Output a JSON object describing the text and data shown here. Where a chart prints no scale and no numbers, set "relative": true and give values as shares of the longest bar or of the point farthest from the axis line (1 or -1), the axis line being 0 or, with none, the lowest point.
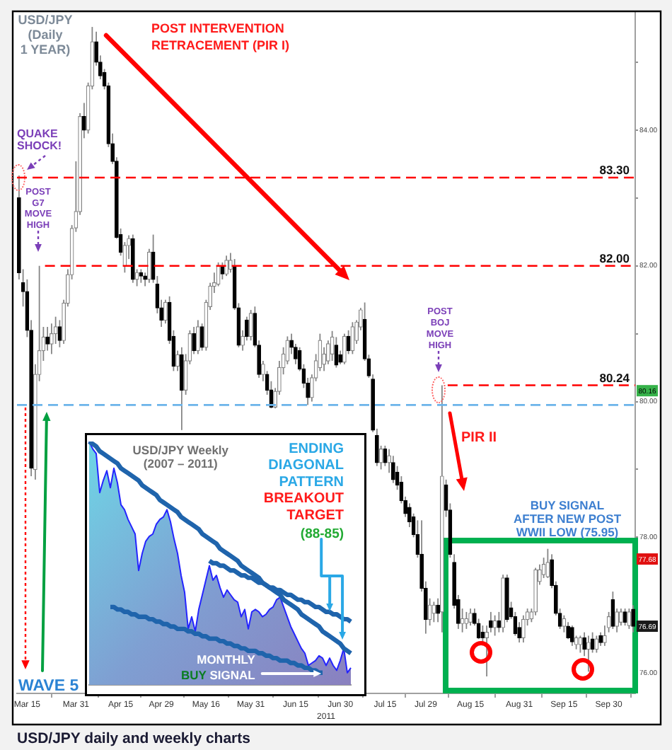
{
  "chart_data": [
    {
      "type": "candlestick",
      "title": "USD/JPY\n(Daily\n1 YEAR)",
      "xlabel": "2011",
      "categories": [
        null,
        null,
        "Mar 15",
        null,
        null,
        null,
        null,
        null,
        null,
        null,
        null,
        null,
        null,
        null,
        "Mar 31",
        null,
        null,
        null,
        null,
        null,
        null,
        null,
        null,
        null,
        null,
        "Apr 15",
        null,
        null,
        null,
        null,
        null,
        null,
        null,
        null,
        null,
        "Apr 29",
        null,
        null,
        null,
        null,
        null,
        null,
        null,
        null,
        null,
        null,
        "May 16",
        null,
        null,
        null,
        null,
        null,
        null,
        null,
        null,
        null,
        null,
        "May 31",
        null,
        null,
        null,
        null,
        null,
        null,
        null,
        null,
        null,
        null,
        "Jun 15",
        null,
        null,
        null,
        null,
        null,
        null,
        null,
        null,
        null,
        null,
        "Jun 30",
        null,
        null,
        null,
        null,
        null,
        null,
        null,
        null,
        null,
        null,
        "Jul 15",
        null,
        null,
        null,
        null,
        null,
        null,
        null,
        null,
        null,
        "Jul 29",
        null,
        null,
        null,
        null,
        null,
        null,
        null,
        null,
        null,
        null,
        "Aug 15",
        null,
        null,
        null,
        null,
        null,
        null,
        null,
        null,
        null,
        null,
        null,
        "Aug 31",
        null,
        null,
        null,
        null,
        null,
        null,
        null,
        null,
        null,
        null,
        "Sep 15",
        null,
        null,
        null,
        null,
        null,
        null,
        null,
        null,
        null,
        null,
        "Sep 30",
        null,
        null,
        null,
        null,
        null,
        null
      ],
      "ohlc": [
        [
          83.0,
          83.33,
          81.8,
          81.9
        ],
        [
          81.75,
          81.95,
          81.4,
          81.62
        ],
        [
          81.62,
          81.8,
          80.95,
          81.05
        ],
        [
          81.05,
          81.2,
          78.9,
          79.02
        ],
        [
          79.0,
          80.55,
          78.85,
          80.4
        ],
        [
          80.4,
          82.0,
          80.3,
          80.75
        ],
        [
          80.75,
          81.1,
          80.6,
          80.95
        ],
        [
          80.95,
          81.1,
          80.75,
          80.85
        ],
        [
          80.85,
          81.15,
          80.7,
          81.0
        ],
        [
          81.0,
          81.25,
          80.85,
          81.1
        ],
        [
          81.1,
          81.2,
          80.8,
          80.9
        ],
        [
          80.9,
          81.5,
          80.85,
          81.45
        ],
        [
          81.45,
          81.95,
          81.4,
          81.87
        ],
        [
          81.87,
          82.6,
          81.8,
          82.55
        ],
        [
          82.56,
          83.54,
          82.5,
          82.8
        ],
        [
          82.8,
          84.25,
          82.75,
          84.2
        ],
        [
          84.2,
          84.4,
          83.88,
          84.0
        ],
        [
          84.0,
          84.7,
          83.95,
          84.65
        ],
        [
          84.65,
          85.52,
          84.6,
          85.3
        ],
        [
          85.3,
          85.45,
          84.95,
          85.0
        ],
        [
          85.0,
          85.1,
          84.75,
          84.8
        ],
        [
          84.85,
          84.9,
          84.6,
          84.65
        ],
        [
          84.65,
          84.7,
          83.75,
          83.8
        ],
        [
          83.8,
          83.95,
          83.5,
          83.54
        ],
        [
          83.54,
          83.6,
          82.4,
          82.42
        ],
        [
          82.46,
          82.55,
          82.15,
          82.2
        ],
        [
          82.0,
          82.35,
          81.9,
          82.3
        ],
        [
          82.3,
          82.45,
          82.1,
          82.4
        ],
        [
          82.4,
          82.46,
          81.75,
          81.8
        ],
        [
          81.8,
          81.95,
          81.7,
          81.9
        ],
        [
          81.9,
          81.95,
          81.75,
          81.85
        ],
        [
          81.85,
          81.9,
          81.7,
          81.8
        ],
        [
          81.8,
          82.25,
          81.75,
          82.2
        ],
        [
          82.2,
          82.46,
          81.75,
          81.8
        ],
        [
          81.73,
          81.85,
          81.3,
          81.38
        ],
        [
          81.38,
          81.5,
          81.1,
          81.2
        ],
        [
          81.2,
          81.5,
          81.15,
          81.46
        ],
        [
          81.46,
          81.55,
          80.85,
          80.9
        ],
        [
          80.96,
          81.05,
          80.45,
          80.52
        ],
        [
          80.52,
          80.75,
          80.45,
          80.69
        ],
        [
          80.69,
          80.8,
          79.58,
          80.17
        ],
        [
          80.17,
          80.7,
          80.1,
          80.6
        ],
        [
          80.6,
          81.05,
          80.55,
          81.0
        ],
        [
          81.0,
          81.1,
          80.7,
          80.75
        ],
        [
          80.75,
          81.2,
          80.7,
          81.1
        ],
        [
          81.1,
          81.15,
          80.75,
          80.8
        ],
        [
          80.8,
          81.5,
          80.75,
          81.46
        ],
        [
          81.4,
          81.75,
          81.35,
          81.7
        ],
        [
          81.7,
          81.9,
          81.6,
          81.75
        ],
        [
          81.73,
          82.05,
          81.7,
          82.0
        ],
        [
          82.0,
          82.05,
          81.8,
          81.88
        ],
        [
          81.88,
          82.15,
          81.85,
          82.08
        ],
        [
          81.95,
          82.19,
          81.9,
          82.08
        ],
        [
          82.0,
          82.1,
          81.35,
          81.38
        ],
        [
          81.38,
          81.45,
          80.8,
          80.83
        ],
        [
          80.83,
          81.05,
          80.75,
          80.96
        ],
        [
          81.2,
          81.25,
          80.9,
          80.96
        ],
        [
          80.96,
          81.35,
          80.9,
          81.3
        ],
        [
          81.3,
          81.4,
          80.8,
          80.83
        ],
        [
          80.83,
          80.9,
          80.35,
          80.4
        ],
        [
          80.4,
          80.6,
          80.3,
          80.55
        ],
        [
          80.4,
          80.45,
          80.1,
          80.17
        ],
        [
          80.17,
          80.3,
          79.9,
          79.92
        ],
        [
          79.92,
          80.2,
          79.9,
          80.15
        ],
        [
          80.15,
          80.6,
          80.1,
          80.5
        ],
        [
          80.5,
          80.8,
          80.4,
          80.7
        ],
        [
          80.6,
          80.96,
          80.55,
          80.9
        ],
        [
          80.9,
          81.0,
          80.7,
          80.8
        ],
        [
          80.8,
          80.85,
          80.55,
          80.63
        ],
        [
          80.75,
          80.8,
          80.45,
          80.48
        ],
        [
          80.48,
          80.55,
          80.2,
          80.27
        ],
        [
          80.27,
          80.35,
          79.95,
          80.06
        ],
        [
          80.06,
          80.4,
          80.0,
          80.35
        ],
        [
          80.35,
          80.7,
          80.3,
          80.6
        ],
        [
          80.5,
          81.0,
          80.45,
          80.9
        ],
        [
          80.55,
          80.8,
          80.45,
          80.7
        ],
        [
          80.6,
          80.9,
          80.55,
          80.85
        ],
        [
          80.7,
          81.04,
          80.6,
          80.95
        ],
        [
          80.83,
          80.95,
          80.5,
          80.54
        ],
        [
          80.69,
          80.75,
          80.55,
          80.58
        ],
        [
          80.58,
          81.0,
          80.55,
          80.96
        ],
        [
          80.96,
          81.05,
          80.7,
          80.75
        ],
        [
          80.75,
          81.17,
          80.7,
          81.1
        ],
        [
          80.9,
          81.2,
          80.85,
          81.17
        ],
        [
          81.1,
          81.38,
          81.05,
          81.35
        ],
        [
          81.21,
          81.46,
          80.6,
          80.63
        ],
        [
          80.63,
          80.69,
          80.35,
          80.38
        ],
        [
          80.33,
          80.4,
          79.55,
          79.58
        ],
        [
          79.5,
          79.6,
          79.05,
          79.1
        ],
        [
          79.1,
          79.35,
          79.0,
          79.3
        ],
        [
          79.3,
          79.35,
          79.05,
          79.1
        ],
        [
          79.1,
          79.3,
          78.95,
          79.2
        ],
        [
          79.1,
          79.2,
          78.8,
          78.85
        ],
        [
          78.96,
          79.05,
          78.7,
          78.77
        ],
        [
          78.81,
          78.9,
          78.5,
          78.54
        ],
        [
          78.54,
          78.6,
          78.3,
          78.35
        ],
        [
          78.44,
          78.5,
          78.15,
          78.23
        ],
        [
          78.3,
          78.35,
          78.0,
          78.04
        ],
        [
          78.04,
          78.25,
          77.7,
          77.75
        ],
        [
          77.75,
          78.25,
          77.2,
          77.25
        ],
        [
          77.25,
          77.35,
          76.58,
          76.79
        ],
        [
          76.79,
          77.1,
          76.7,
          77.0
        ],
        [
          76.88,
          77.05,
          76.75,
          77.0
        ],
        [
          77.0,
          77.1,
          76.75,
          76.88
        ],
        [
          76.9,
          80.24,
          76.6,
          78.9
        ],
        [
          78.77,
          78.85,
          78.3,
          78.4
        ],
        [
          78.4,
          78.5,
          77.7,
          77.75
        ],
        [
          77.63,
          77.75,
          76.95,
          77.0
        ],
        [
          77.08,
          77.15,
          76.65,
          76.73
        ],
        [
          76.73,
          76.95,
          76.6,
          76.8
        ],
        [
          76.73,
          76.9,
          76.65,
          76.8
        ],
        [
          76.75,
          76.95,
          76.7,
          76.88
        ],
        [
          76.88,
          76.95,
          76.7,
          76.73
        ],
        [
          76.73,
          76.8,
          76.5,
          76.52
        ],
        [
          76.6,
          76.7,
          76.45,
          76.52
        ],
        [
          76.52,
          76.7,
          75.95,
          76.6
        ],
        [
          76.77,
          76.9,
          76.6,
          76.67
        ],
        [
          76.67,
          76.85,
          76.55,
          76.77
        ],
        [
          76.77,
          76.9,
          76.6,
          76.67
        ],
        [
          76.67,
          77.45,
          76.6,
          77.4
        ],
        [
          77.4,
          77.45,
          76.75,
          76.79
        ],
        [
          76.96,
          77.05,
          76.8,
          76.83
        ],
        [
          76.83,
          76.9,
          76.55,
          76.58
        ],
        [
          76.67,
          76.75,
          76.45,
          76.52
        ],
        [
          76.52,
          76.85,
          76.45,
          76.79
        ],
        [
          76.79,
          76.95,
          76.7,
          76.9
        ],
        [
          76.8,
          76.95,
          76.75,
          76.9
        ],
        [
          76.9,
          77.55,
          76.85,
          77.52
        ],
        [
          77.35,
          77.6,
          77.3,
          77.52
        ],
        [
          77.45,
          77.7,
          77.4,
          77.6
        ],
        [
          77.42,
          77.83,
          77.4,
          77.63
        ],
        [
          77.67,
          77.75,
          77.25,
          77.29
        ],
        [
          77.29,
          77.35,
          76.85,
          76.88
        ],
        [
          76.88,
          76.95,
          76.65,
          76.69
        ],
        [
          76.69,
          76.85,
          76.6,
          76.8
        ],
        [
          76.69,
          76.75,
          76.5,
          76.52
        ],
        [
          76.67,
          76.7,
          76.4,
          76.46
        ],
        [
          76.42,
          76.55,
          76.35,
          76.52
        ],
        [
          76.42,
          76.55,
          76.3,
          76.52
        ],
        [
          76.52,
          76.6,
          76.25,
          76.35
        ],
        [
          76.35,
          76.55,
          76.02,
          76.45
        ],
        [
          76.5,
          76.6,
          76.3,
          76.35
        ],
        [
          76.35,
          76.55,
          76.3,
          76.5
        ],
        [
          76.55,
          76.6,
          76.4,
          76.45
        ],
        [
          76.45,
          76.7,
          76.4,
          76.55
        ],
        [
          76.67,
          76.9,
          76.6,
          76.83
        ],
        [
          77.08,
          77.2,
          76.65,
          76.69
        ],
        [
          76.69,
          76.95,
          76.6,
          76.9
        ],
        [
          76.75,
          76.95,
          76.7,
          76.9
        ],
        [
          76.9,
          76.95,
          76.7,
          76.75
        ],
        [
          76.7,
          76.95,
          76.65,
          76.9
        ],
        [
          76.94,
          77.0,
          76.6,
          76.69
        ]
      ],
      "ylim": [
        75.7,
        85.75
      ],
      "yticks": [
        {
          "value": 76,
          "label": "76.00"
        },
        {
          "value": 77,
          "label": null
        },
        {
          "value": 78,
          "label": "78.00"
        },
        {
          "value": 79,
          "label": null
        },
        {
          "value": 80,
          "label": "80.00"
        },
        {
          "value": 81,
          "label": null
        },
        {
          "value": 82,
          "label": "82.00"
        },
        {
          "value": 83,
          "label": null
        },
        {
          "value": 84,
          "label": "84.00"
        },
        {
          "value": 85,
          "label": null
        }
      ],
      "ref_lines": [
        {
          "axis": "y",
          "value": 83.3,
          "label": "83.30",
          "color": "#ff0000",
          "line_style": "dashed"
        },
        {
          "axis": "y",
          "value": 82.0,
          "label": "82.00",
          "color": "#ff0000",
          "line_style": "dashed"
        },
        {
          "axis": "y",
          "value": 80.24,
          "label": "80.24",
          "color": "#ff0000",
          "line_style": "dashed"
        },
        {
          "axis": "y",
          "value": 79.95,
          "color": "#6cb4ea",
          "line_style": "dashed"
        }
      ],
      "annotations": [
        "POST INTERVENTION\nRETRACEMENT (PIR I)",
        "QUAKE\nSHOCK!",
        "POST\nG7\nMOVE\nHIGH",
        "POST\nBOJ\nMOVE\nHIGH",
        "PIR II",
        "BUY SIGNAL\nAFTER NEW POST\nWWII LOW (75.95)",
        "WAVE 5",
        "USD/JPY daily and weekly charts",
        {
          "text": "80.16",
          "y": 80.16
        },
        {
          "text": "77.68",
          "y": 77.68
        },
        {
          "text": "76.69",
          "y": 76.69
        }
      ]
    },
    {
      "type": "area",
      "title": "USD/JPY Weekly",
      "subtitle": "(2007 – 2011)",
      "relative": true,
      "categories": [
        null,
        null,
        null,
        null,
        null,
        null,
        null,
        null,
        null,
        null,
        null,
        null,
        null,
        null,
        null,
        null,
        null,
        null,
        null,
        null,
        null,
        null,
        null,
        null,
        null,
        null,
        null,
        null,
        null,
        null,
        null,
        null,
        null,
        null,
        null,
        null,
        null,
        null,
        null,
        null,
        null,
        null,
        null,
        null,
        null,
        null,
        null,
        null,
        null,
        null,
        null,
        null,
        null,
        null,
        null,
        null,
        null,
        null,
        null,
        null,
        null,
        null,
        null,
        null,
        null,
        null,
        null,
        null,
        null,
        null,
        null,
        null,
        null,
        null,
        null
      ],
      "series": [
        {
          "type": "area",
          "color": "#2424ff",
          "values": [
            1.0,
            0.97,
            0.95,
            0.79,
            0.84,
            0.88,
            0.81,
            0.89,
            0.83,
            0.74,
            0.72,
            0.68,
            0.65,
            0.62,
            0.47,
            0.54,
            0.59,
            0.61,
            0.62,
            0.66,
            0.68,
            0.69,
            0.72,
            0.67,
            0.6,
            0.54,
            0.45,
            0.38,
            0.23,
            0.28,
            0.22,
            0.31,
            0.37,
            0.43,
            0.49,
            0.43,
            0.45,
            0.4,
            0.36,
            0.39,
            0.37,
            0.35,
            0.34,
            0.28,
            0.31,
            0.23,
            0.3,
            0.31,
            0.3,
            0.28,
            0.29,
            0.31,
            0.32,
            0.35,
            0.36,
            0.32,
            0.28,
            0.24,
            0.21,
            0.18,
            0.15,
            0.13,
            0.08,
            0.09,
            0.1,
            0.12,
            0.11,
            0.08,
            0.11,
            0.08,
            0.06,
            0.1,
            0.15,
            0.05,
            0.07
          ]
        },
        {
          "type": "line",
          "color": "#1f64ac",
          "values": [
            1.0,
            0.99,
            0.98,
            0.96,
            0.95,
            0.94,
            0.93,
            0.92,
            0.91,
            0.89,
            0.88,
            0.87,
            0.86,
            0.85,
            0.84,
            0.82,
            0.81,
            0.8,
            0.79,
            0.78,
            0.76,
            0.75,
            0.74,
            0.73,
            0.72,
            0.71,
            0.69,
            0.68,
            0.67,
            0.66,
            0.65,
            0.64,
            0.62,
            0.61,
            0.6,
            0.59,
            0.58,
            0.56,
            0.55,
            0.54,
            0.53,
            0.52,
            0.51,
            0.49,
            0.48,
            0.47,
            0.46,
            0.45,
            0.44,
            0.42,
            0.41,
            0.4,
            0.39,
            0.38,
            0.37,
            0.35,
            0.34,
            0.33,
            0.32,
            0.31,
            0.29,
            0.28,
            0.27,
            0.26,
            0.25,
            0.24,
            0.22,
            0.21,
            0.2,
            0.19,
            0.18,
            0.17,
            0.15,
            0.14,
            0.13
          ]
        },
        {
          "type": "line",
          "color": "#1f64ac",
          "values": [
            null,
            null,
            null,
            null,
            null,
            null,
            null,
            null,
            null,
            null,
            null,
            null,
            null,
            null,
            null,
            null,
            null,
            null,
            null,
            null,
            null,
            null,
            null,
            null,
            null,
            null,
            null,
            null,
            null,
            null,
            null,
            null,
            null,
            null,
            0.51,
            0.5,
            0.5,
            0.49,
            0.49,
            0.48,
            0.47,
            0.47,
            0.46,
            0.45,
            0.45,
            0.44,
            0.44,
            0.43,
            0.42,
            0.42,
            0.41,
            0.4,
            0.4,
            0.39,
            0.39,
            0.38,
            0.37,
            0.37,
            0.36,
            0.35,
            0.35,
            0.34,
            0.34,
            0.33,
            0.32,
            0.32,
            0.31,
            0.3,
            0.3,
            0.29,
            0.29,
            0.28,
            0.27,
            0.27,
            0.26
          ]
        },
        {
          "type": "line",
          "color": "#1f64ac",
          "values": [
            null,
            null,
            null,
            null,
            null,
            null,
            0.32,
            0.32,
            0.31,
            0.31,
            0.3,
            0.3,
            0.29,
            0.29,
            0.28,
            0.28,
            0.28,
            0.27,
            0.27,
            0.26,
            0.26,
            0.25,
            0.25,
            0.24,
            0.24,
            0.23,
            0.23,
            0.23,
            0.22,
            0.22,
            0.21,
            0.21,
            0.2,
            0.2,
            0.19,
            0.19,
            0.19,
            0.18,
            0.18,
            0.17,
            0.17,
            0.16,
            0.16,
            0.15,
            0.15,
            0.14,
            0.14,
            0.14,
            0.13,
            0.13,
            0.12,
            0.12,
            0.11,
            0.11,
            0.1,
            0.1,
            0.1,
            0.09,
            0.09,
            0.08,
            0.08,
            0.07,
            0.07,
            0.06,
            0.06,
            0.05,
            0.05,
            null,
            null,
            null,
            null,
            null,
            null,
            null,
            null
          ]
        }
      ],
      "annotations": [
        "ENDING\nDIAGONAL\nPATTERN",
        "BREAKOUT\nTARGET",
        "(88-85)",
        "MONTHLY\nBUY SIGNAL"
      ]
    }
  ]
}
